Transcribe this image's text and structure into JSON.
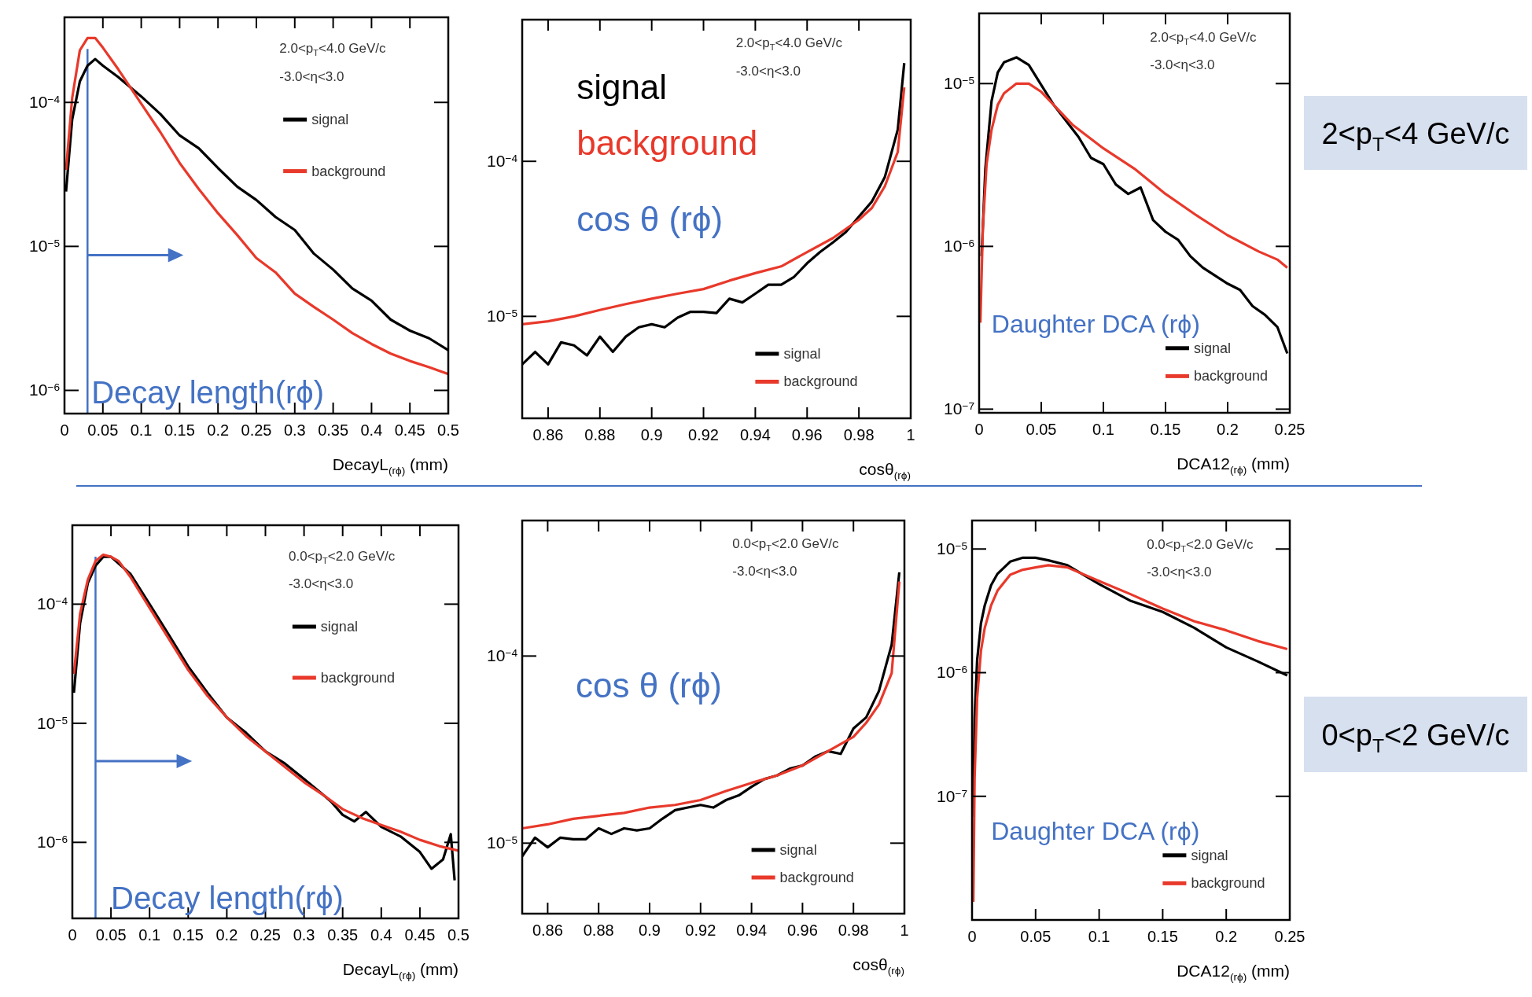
{
  "chart_data": [
    {
      "type": "line",
      "log": "y",
      "legend": "top right",
      "xlabel": "DecayL$_{(rϕ)}$ (mm)",
      "xlim": [
        0,
        0.5
      ],
      "xticks": [
        0,
        0.05,
        0.1,
        0.15,
        0.2,
        0.25,
        0.3,
        0.35,
        0.4,
        0.45,
        0.5
      ],
      "ylim": [
        6.9e-07,
        0.00039
      ],
      "yticks": [
        {
          "value": 0.0001,
          "label": "10$^{−4}$"
        },
        {
          "value": 1e-05,
          "label": "10$^{−5}$"
        },
        {
          "value": 1e-06,
          "label": "10$^{−6}$"
        }
      ],
      "ref_lines": [
        {
          "axis": "x",
          "value": 0.03,
          "color": "#4472c4"
        }
      ],
      "annotations": [
        "2.0<p$_{T}$<4.0 GeV/c",
        "-3.0<η<3.0",
        "Decay length(rϕ)"
      ],
      "series": [
        {
          "name": "signal",
          "color": "#000000",
          "x": [
            0.002,
            0.01,
            0.02,
            0.03,
            0.04,
            0.05,
            0.07,
            0.1,
            0.125,
            0.15,
            0.175,
            0.2,
            0.225,
            0.25,
            0.275,
            0.3,
            0.325,
            0.35,
            0.375,
            0.4,
            0.425,
            0.45,
            0.475,
            0.5
          ],
          "values": [
            2.4e-05,
            7.6e-05,
            0.00014,
            0.00018,
            0.0002,
            0.00018,
            0.00015,
            0.00011,
            8.3e-05,
            5.9e-05,
            4.8e-05,
            3.5e-05,
            2.6e-05,
            2.1e-05,
            1.6e-05,
            1.3e-05,
            8.9e-06,
            6.9e-06,
            5.1e-06,
            4.2e-06,
            3.1e-06,
            2.6e-06,
            2.3e-06,
            1.9e-06
          ]
        },
        {
          "name": "background",
          "color": "#e8392b",
          "x": [
            0.002,
            0.01,
            0.02,
            0.03,
            0.04,
            0.05,
            0.07,
            0.1,
            0.125,
            0.15,
            0.175,
            0.2,
            0.225,
            0.25,
            0.275,
            0.3,
            0.325,
            0.35,
            0.375,
            0.4,
            0.425,
            0.45,
            0.475,
            0.5
          ],
          "values": [
            3.4e-05,
            0.000107,
            0.00023,
            0.00028,
            0.00028,
            0.00024,
            0.00017,
            9.8e-05,
            6.2e-05,
            3.8e-05,
            2.5e-05,
            1.7e-05,
            1.2e-05,
            8.3e-06,
            6.6e-06,
            4.7e-06,
            3.8e-06,
            3.1e-06,
            2.5e-06,
            2.1e-06,
            1.8e-06,
            1.6e-06,
            1.45e-06,
            1.3e-06
          ]
        }
      ]
    },
    {
      "type": "line",
      "log": "y",
      "legend": "bottom right",
      "xlabel": "cosθ$_{(rϕ)}$",
      "xlim": [
        0.85,
        1
      ],
      "xticks": [
        0.86,
        0.88,
        0.9,
        0.92,
        0.94,
        0.96,
        0.98,
        1
      ],
      "ylim": [
        2.2e-06,
        0.00082
      ],
      "yticks": [
        {
          "value": 0.0001,
          "label": "10$^{−4}$"
        },
        {
          "value": 1e-05,
          "label": "10$^{−5}$"
        }
      ],
      "annotations": [
        "2.0<p$_{T}$<4.0 GeV/c",
        "-3.0<η<3.0",
        "signal",
        "background",
        "cos θ (rϕ)"
      ],
      "series": [
        {
          "name": "signal",
          "color": "#000000",
          "x": [
            0.85,
            0.855,
            0.86,
            0.865,
            0.87,
            0.875,
            0.88,
            0.885,
            0.89,
            0.895,
            0.9,
            0.905,
            0.91,
            0.915,
            0.92,
            0.925,
            0.93,
            0.935,
            0.94,
            0.945,
            0.95,
            0.955,
            0.96,
            0.965,
            0.97,
            0.975,
            0.98,
            0.985,
            0.99,
            0.995,
            0.9975
          ],
          "values": [
            4.9e-06,
            5.9e-06,
            4.9e-06,
            6.8e-06,
            6.5e-06,
            5.6e-06,
            7.4e-06,
            5.9e-06,
            7.4e-06,
            8.5e-06,
            8.9e-06,
            8.5e-06,
            9.8e-06,
            1.07e-05,
            1.07e-05,
            1.05e-05,
            1.3e-05,
            1.23e-05,
            1.4e-05,
            1.6e-05,
            1.6e-05,
            1.8e-05,
            2.2e-05,
            2.6e-05,
            3e-05,
            3.5e-05,
            4.4e-05,
            5.5e-05,
            7.9e-05,
            0.00016,
            0.00043
          ]
        },
        {
          "name": "background",
          "color": "#e8392b",
          "x": [
            0.85,
            0.86,
            0.87,
            0.88,
            0.89,
            0.9,
            0.91,
            0.92,
            0.93,
            0.94,
            0.95,
            0.96,
            0.97,
            0.98,
            0.985,
            0.99,
            0.995,
            0.9975
          ],
          "values": [
            8.9e-06,
            9.3e-06,
            1e-05,
            1.1e-05,
            1.2e-05,
            1.3e-05,
            1.4e-05,
            1.5e-05,
            1.7e-05,
            1.9e-05,
            2.1e-05,
            2.6e-05,
            3.2e-05,
            4.2e-05,
            5e-05,
            6.9e-05,
            0.000115,
            0.0003
          ]
        }
      ]
    },
    {
      "type": "line",
      "log": "y",
      "legend": "bottom right",
      "xlabel": "DCA12$_{(rϕ)}$ (mm)",
      "xlim": [
        0,
        0.25
      ],
      "xticks": [
        0,
        0.05,
        0.1,
        0.15,
        0.2,
        0.25
      ],
      "ylim": [
        9.5e-08,
        2.7e-05
      ],
      "yticks": [
        {
          "value": 1e-05,
          "label": "10$^{−5}$"
        },
        {
          "value": 1e-06,
          "label": "10$^{−6}$"
        },
        {
          "value": 1e-07,
          "label": "10$^{−7}$"
        }
      ],
      "annotations": [
        "2.0<p$_{T}$<4.0 GeV/c",
        "-3.0<η<3.0",
        "Daughter DCA (rϕ)",
        "2<p$_{T}$<4 GeV/c"
      ],
      "series": [
        {
          "name": "signal",
          "color": "#000000",
          "x": [
            0.002,
            0.005,
            0.01,
            0.015,
            0.02,
            0.03,
            0.04,
            0.05,
            0.06,
            0.07,
            0.08,
            0.09,
            0.1,
            0.11,
            0.12,
            0.13,
            0.14,
            0.15,
            0.16,
            0.17,
            0.18,
            0.19,
            0.2,
            0.21,
            0.22,
            0.23,
            0.24,
            0.248
          ],
          "values": [
            8.7e-07,
            3e-06,
            7.8e-06,
            1.17e-05,
            1.35e-05,
            1.45e-05,
            1.3e-05,
            9.8e-06,
            7.4e-06,
            5.9e-06,
            4.7e-06,
            3.5e-06,
            3.2e-06,
            2.4e-06,
            2.1e-06,
            2.3e-06,
            1.45e-06,
            1.23e-06,
            1.1e-06,
            8.7e-07,
            7.4e-07,
            6.6e-07,
            5.9e-07,
            5.4e-07,
            4.3e-07,
            3.8e-07,
            3.2e-07,
            2.2e-07
          ]
        },
        {
          "name": "background",
          "color": "#e8392b",
          "x": [
            0.001,
            0.003,
            0.006,
            0.01,
            0.015,
            0.02,
            0.03,
            0.04,
            0.05,
            0.06,
            0.075,
            0.1,
            0.125,
            0.15,
            0.175,
            0.2,
            0.225,
            0.24,
            0.248
          ],
          "values": [
            3.4e-07,
            1.3e-06,
            3.2e-06,
            5.2e-06,
            7.4e-06,
            8.7e-06,
            1e-05,
            1e-05,
            8.9e-06,
            7.4e-06,
            5.6e-06,
            4e-06,
            3e-06,
            2.1e-06,
            1.55e-06,
            1.17e-06,
            9.3e-07,
            8.3e-07,
            7.4e-07
          ]
        }
      ]
    },
    {
      "type": "line",
      "log": "y",
      "legend": "top right",
      "xlabel": "DecayL$_{(rϕ)}$ (mm)",
      "xlim": [
        0,
        0.5
      ],
      "xticks": [
        0,
        0.05,
        0.1,
        0.15,
        0.2,
        0.25,
        0.3,
        0.35,
        0.4,
        0.45,
        0.5
      ],
      "ylim": [
        2.3e-07,
        0.00046
      ],
      "yticks": [
        {
          "value": 0.0001,
          "label": "10$^{−4}$"
        },
        {
          "value": 1e-05,
          "label": "10$^{−5}$"
        },
        {
          "value": 1e-06,
          "label": "10$^{−6}$"
        }
      ],
      "ref_lines": [
        {
          "axis": "x",
          "value": 0.03,
          "color": "#4472c4"
        }
      ],
      "annotations": [
        "0.0<p$_{T}$<2.0 GeV/c",
        "-3.0<η<3.0",
        "Decay length(rϕ)"
      ],
      "series": [
        {
          "name": "signal",
          "color": "#000000",
          "x": [
            0.002,
            0.01,
            0.02,
            0.03,
            0.04,
            0.05,
            0.075,
            0.1,
            0.125,
            0.15,
            0.175,
            0.2,
            0.225,
            0.25,
            0.275,
            0.3,
            0.325,
            0.335,
            0.35,
            0.365,
            0.38,
            0.4,
            0.425,
            0.45,
            0.465,
            0.48,
            0.49,
            0.495
          ],
          "values": [
            1.8e-05,
            6.9e-05,
            0.00015,
            0.00021,
            0.00025,
            0.00025,
            0.00018,
            0.0001,
            5.5e-05,
            3e-05,
            1.8e-05,
            1.12e-05,
            8.3e-06,
            5.8e-06,
            4.6e-06,
            3.4e-06,
            2.5e-06,
            2.2e-06,
            1.7e-06,
            1.5e-06,
            1.8e-06,
            1.35e-06,
            1.12e-06,
            8.3e-07,
            6e-07,
            7.2e-07,
            1.17e-06,
            4.8e-07
          ]
        },
        {
          "name": "background",
          "color": "#e8392b",
          "x": [
            0.002,
            0.01,
            0.02,
            0.03,
            0.04,
            0.05,
            0.06,
            0.075,
            0.1,
            0.125,
            0.15,
            0.175,
            0.2,
            0.225,
            0.25,
            0.275,
            0.3,
            0.325,
            0.35,
            0.375,
            0.4,
            0.425,
            0.45,
            0.475,
            0.5
          ],
          "values": [
            2.6e-05,
            8.3e-05,
            0.00016,
            0.00023,
            0.00026,
            0.00025,
            0.00023,
            0.00017,
            9.3e-05,
            5.1e-05,
            2.8e-05,
            1.7e-05,
            1.12e-05,
            7.8e-06,
            5.8e-06,
            4.3e-06,
            3.2e-06,
            2.5e-06,
            1.9e-06,
            1.6e-06,
            1.4e-06,
            1.23e-06,
            1.05e-06,
            9.3e-07,
            8.5e-07
          ]
        }
      ]
    },
    {
      "type": "line",
      "log": "y",
      "legend": "bottom right",
      "xlabel": "cosθ$_{(rϕ)}$",
      "xlim": [
        0.85,
        1
      ],
      "xticks": [
        0.86,
        0.88,
        0.9,
        0.92,
        0.94,
        0.96,
        0.98,
        1
      ],
      "ylim": [
        4.2e-06,
        0.00053
      ],
      "yticks": [
        {
          "value": 0.0001,
          "label": "10$^{−4}$"
        },
        {
          "value": 1e-05,
          "label": "10$^{−5}$"
        }
      ],
      "annotations": [
        "0.0<p$_{T}$<2.0 GeV/c",
        "-3.0<η<3.0",
        "cos θ (rϕ)"
      ],
      "series": [
        {
          "name": "signal",
          "color": "#000000",
          "x": [
            0.85,
            0.855,
            0.86,
            0.865,
            0.87,
            0.875,
            0.88,
            0.885,
            0.89,
            0.895,
            0.9,
            0.905,
            0.91,
            0.915,
            0.92,
            0.925,
            0.93,
            0.935,
            0.94,
            0.945,
            0.95,
            0.955,
            0.96,
            0.965,
            0.97,
            0.975,
            0.98,
            0.985,
            0.99,
            0.995,
            0.998
          ],
          "values": [
            8.5e-06,
            1.07e-05,
            9.5e-06,
            1.07e-05,
            1.05e-05,
            1.05e-05,
            1.2e-05,
            1.12e-05,
            1.2e-05,
            1.17e-05,
            1.2e-05,
            1.35e-05,
            1.5e-05,
            1.55e-05,
            1.6e-05,
            1.55e-05,
            1.7e-05,
            1.8e-05,
            2e-05,
            2.2e-05,
            2.3e-05,
            2.5e-05,
            2.6e-05,
            2.9e-05,
            3.1e-05,
            3e-05,
            4.1e-05,
            4.7e-05,
            6.5e-05,
            0.000115,
            0.00028
          ]
        },
        {
          "name": "background",
          "color": "#e8392b",
          "x": [
            0.85,
            0.86,
            0.87,
            0.88,
            0.89,
            0.9,
            0.91,
            0.92,
            0.93,
            0.94,
            0.95,
            0.96,
            0.97,
            0.98,
            0.985,
            0.99,
            0.995,
            0.998
          ],
          "values": [
            1.2e-05,
            1.26e-05,
            1.35e-05,
            1.4e-05,
            1.45e-05,
            1.55e-05,
            1.6e-05,
            1.7e-05,
            1.9e-05,
            2.1e-05,
            2.3e-05,
            2.6e-05,
            3.1e-05,
            3.7e-05,
            4.4e-05,
            5.5e-05,
            8.1e-05,
            0.00025
          ]
        }
      ]
    },
    {
      "type": "line",
      "log": "y",
      "legend": "bottom right",
      "xlabel": "DCA12$_{(rϕ)}$ (mm)",
      "xlim": [
        0,
        0.25
      ],
      "xticks": [
        0,
        0.05,
        0.1,
        0.15,
        0.2,
        0.25
      ],
      "ylim": [
        1e-08,
        1.7e-05
      ],
      "yticks": [
        {
          "value": 1e-05,
          "label": "10$^{−5}$"
        },
        {
          "value": 1e-06,
          "label": "10$^{−6}$"
        },
        {
          "value": 1e-07,
          "label": "10$^{−7}$"
        }
      ],
      "annotations": [
        "0.0<p$_{T}$<2.0 GeV/c",
        "-3.0<η<3.0",
        "Daughter DCA (rϕ)",
        "0<p$_{T}$<2 GeV/c"
      ],
      "series": [
        {
          "name": "signal",
          "color": "#000000",
          "x": [
            0.001,
            0.002,
            0.004,
            0.007,
            0.01,
            0.015,
            0.02,
            0.03,
            0.04,
            0.05,
            0.06,
            0.075,
            0.1,
            0.125,
            0.15,
            0.175,
            0.2,
            0.225,
            0.248
          ],
          "values": [
            6.8e-08,
            4.3e-07,
            1.26e-06,
            2.5e-06,
            3.5e-06,
            5.1e-06,
            6.3e-06,
            7.9e-06,
            8.5e-06,
            8.5e-06,
            8.1e-06,
            7.4e-06,
            5.2e-06,
            3.8e-06,
            3.1e-06,
            2.3e-06,
            1.6e-06,
            1.23e-06,
            9.5e-07
          ]
        },
        {
          "name": "background",
          "color": "#e8392b",
          "x": [
            0.001,
            0.002,
            0.004,
            0.007,
            0.01,
            0.015,
            0.02,
            0.03,
            0.04,
            0.05,
            0.06,
            0.075,
            0.1,
            0.125,
            0.15,
            0.175,
            0.2,
            0.225,
            0.248
          ],
          "values": [
            1.4e-08,
            1.4e-07,
            6.2e-07,
            1.5e-06,
            2.3e-06,
            3.5e-06,
            4.6e-06,
            6.2e-06,
            6.8e-06,
            7.1e-06,
            7.4e-06,
            7.1e-06,
            5.5e-06,
            4.3e-06,
            3.3e-06,
            2.6e-06,
            2.2e-06,
            1.8e-06,
            1.55e-06
          ]
        }
      ]
    }
  ]
}
